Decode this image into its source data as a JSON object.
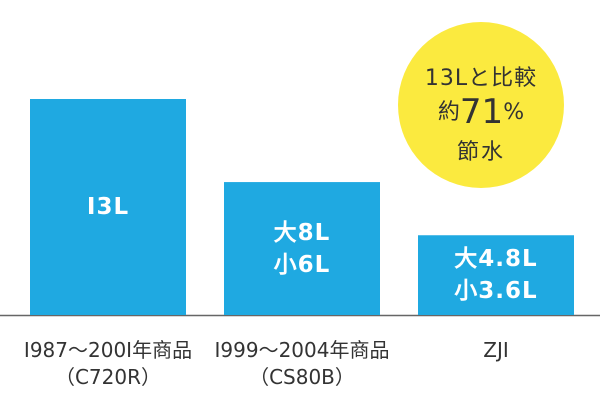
{
  "chart_data": {
    "type": "bar",
    "categories": [
      "1987〜2001年商品（C720R）",
      "1999〜2004年商品（CS80B）",
      "ZJI"
    ],
    "values": [
      13,
      8,
      4.8
    ],
    "secondary_values": [
      null,
      6,
      3.6
    ],
    "bar_labels": [
      [
        "I3L"
      ],
      [
        "大8L",
        "小6L"
      ],
      [
        "大4.8L",
        "小3.6L"
      ]
    ],
    "category_lines": [
      [
        "I987〜200I年商品",
        "（C720R）"
      ],
      [
        "I999〜2004年商品",
        "（CS80B）"
      ],
      [
        "ZJI"
      ]
    ],
    "ylim": [
      0,
      13
    ],
    "grid": false,
    "legend": "none",
    "bar_color": "#1fa9e1",
    "axis_color": "#666666",
    "badge": {
      "line1": "13Lと比較",
      "line2_prefix": "約",
      "line2_value": "71",
      "line2_suffix": "%",
      "line3": "節水",
      "color": "#fbea3f"
    }
  }
}
